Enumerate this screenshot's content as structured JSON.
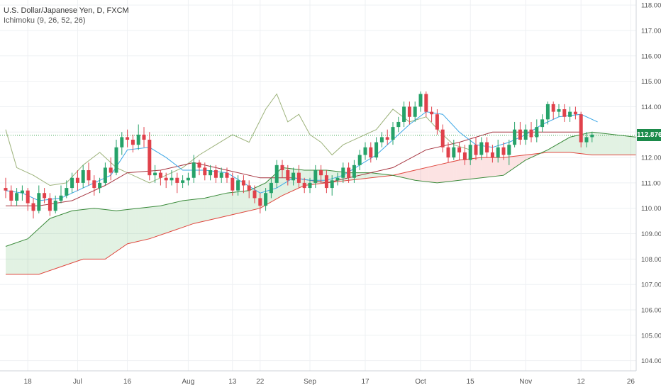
{
  "legend": {
    "title": "U.S. Dollar/Japanese Yen, D, FXCM",
    "indicator": "Ichimoku (9, 26, 52, 26)"
  },
  "last_price_label": "112.876",
  "colors": {
    "up": "#26a269",
    "down": "#e0414b",
    "tenkan": "#3aa6e6",
    "kijun": "#a6343f",
    "chikou": "#9cb27a",
    "span_a": "#3a8a3a",
    "span_b": "#e0453c",
    "cloud_bull": "rgba(76,175,80,0.16)",
    "cloud_bear": "rgba(239,83,80,0.16)",
    "grid": "#eef0f3",
    "axis_text": "#555555",
    "price_line": "#3aa651"
  },
  "chart_data": {
    "type": "candlestick",
    "ylim": [
      103.6,
      118.2
    ],
    "y_ticks": [
      "104.000",
      "105.000",
      "106.000",
      "107.000",
      "108.000",
      "109.000",
      "110.000",
      "111.000",
      "112.000",
      "113.000",
      "114.000",
      "115.000",
      "116.000",
      "117.000",
      "118.000"
    ],
    "x_ticks": [
      {
        "i": 4,
        "label": "18"
      },
      {
        "i": 13,
        "label": "Jul"
      },
      {
        "i": 22,
        "label": "16"
      },
      {
        "i": 33,
        "label": "Aug"
      },
      {
        "i": 41,
        "label": "13"
      },
      {
        "i": 46,
        "label": "22"
      },
      {
        "i": 55,
        "label": "Sep"
      },
      {
        "i": 65,
        "label": "17"
      },
      {
        "i": 75,
        "label": "Oct"
      },
      {
        "i": 84,
        "label": "15"
      },
      {
        "i": 94,
        "label": "Nov"
      },
      {
        "i": 104,
        "label": "12"
      },
      {
        "i": 113,
        "label": "26"
      }
    ],
    "candles": [
      [
        110.8,
        110.7,
        111.2,
        110.4
      ],
      [
        110.7,
        110.3,
        110.9,
        110.1
      ],
      [
        110.3,
        110.6,
        110.8,
        110.1
      ],
      [
        110.6,
        110.7,
        110.9,
        110.3
      ],
      [
        110.7,
        110.2,
        110.8,
        109.9
      ],
      [
        110.2,
        109.9,
        110.4,
        109.6
      ],
      [
        109.9,
        110.6,
        110.9,
        109.8
      ],
      [
        110.6,
        110.4,
        110.8,
        110.2
      ],
      [
        110.4,
        109.9,
        110.6,
        109.7
      ],
      [
        109.9,
        110.3,
        110.5,
        109.8
      ],
      [
        110.3,
        110.5,
        110.9,
        110.2
      ],
      [
        110.5,
        110.8,
        111.1,
        110.4
      ],
      [
        110.8,
        111.2,
        111.4,
        110.6
      ],
      [
        111.2,
        111.0,
        111.5,
        110.7
      ],
      [
        111.0,
        111.5,
        111.7,
        110.8
      ],
      [
        111.5,
        111.1,
        111.8,
        110.9
      ],
      [
        111.1,
        110.8,
        111.3,
        110.5
      ],
      [
        110.8,
        111.0,
        111.2,
        110.6
      ],
      [
        111.0,
        111.6,
        111.8,
        110.9
      ],
      [
        111.6,
        111.4,
        112.0,
        111.1
      ],
      [
        111.4,
        112.4,
        112.7,
        111.3
      ],
      [
        112.4,
        112.8,
        113.0,
        112.1
      ],
      [
        112.8,
        112.7,
        113.1,
        112.4
      ],
      [
        112.7,
        112.5,
        112.9,
        112.2
      ],
      [
        112.5,
        112.9,
        113.3,
        112.3
      ],
      [
        112.9,
        112.7,
        113.2,
        112.4
      ],
      [
        112.7,
        111.3,
        113.0,
        111.1
      ],
      [
        111.3,
        111.4,
        111.7,
        111.0
      ],
      [
        111.4,
        111.2,
        111.5,
        110.9
      ],
      [
        111.2,
        111.1,
        111.4,
        110.8
      ],
      [
        111.1,
        111.2,
        111.5,
        110.9
      ],
      [
        111.2,
        111.0,
        111.4,
        110.6
      ],
      [
        111.0,
        111.1,
        111.3,
        110.8
      ],
      [
        111.1,
        111.2,
        111.4,
        110.9
      ],
      [
        111.2,
        111.8,
        112.1,
        111.0
      ],
      [
        111.8,
        111.6,
        111.9,
        111.3
      ],
      [
        111.6,
        111.3,
        111.8,
        111.1
      ],
      [
        111.3,
        111.5,
        111.7,
        111.1
      ],
      [
        111.5,
        111.2,
        111.7,
        111.0
      ],
      [
        111.2,
        111.4,
        111.6,
        111.0
      ],
      [
        111.4,
        111.2,
        111.6,
        111.0
      ],
      [
        111.2,
        110.7,
        111.4,
        110.5
      ],
      [
        110.7,
        111.1,
        111.3,
        110.5
      ],
      [
        111.1,
        110.9,
        111.3,
        110.6
      ],
      [
        110.9,
        110.7,
        111.1,
        110.4
      ],
      [
        110.7,
        110.4,
        110.9,
        110.2
      ],
      [
        110.4,
        110.1,
        110.6,
        109.8
      ],
      [
        110.1,
        110.6,
        110.8,
        109.9
      ],
      [
        110.6,
        111.0,
        111.2,
        110.4
      ],
      [
        111.0,
        111.7,
        111.9,
        110.8
      ],
      [
        111.7,
        111.5,
        111.9,
        111.2
      ],
      [
        111.5,
        111.1,
        111.7,
        110.9
      ],
      [
        111.1,
        111.4,
        111.6,
        110.9
      ],
      [
        111.4,
        111.0,
        111.7,
        110.8
      ],
      [
        111.0,
        110.8,
        111.2,
        110.6
      ],
      [
        110.8,
        111.0,
        111.2,
        110.6
      ],
      [
        111.0,
        111.5,
        111.7,
        110.8
      ],
      [
        111.5,
        111.3,
        111.7,
        111.0
      ],
      [
        111.3,
        110.8,
        111.5,
        110.6
      ],
      [
        110.8,
        111.1,
        111.3,
        110.5
      ],
      [
        111.1,
        111.2,
        111.4,
        110.9
      ],
      [
        111.2,
        111.6,
        111.8,
        111.0
      ],
      [
        111.6,
        111.2,
        111.8,
        111.0
      ],
      [
        111.2,
        111.7,
        111.9,
        111.0
      ],
      [
        111.7,
        112.1,
        112.3,
        111.5
      ],
      [
        112.1,
        112.4,
        112.6,
        111.9
      ],
      [
        112.4,
        112.0,
        112.6,
        111.8
      ],
      [
        112.0,
        112.6,
        112.8,
        111.9
      ],
      [
        112.6,
        112.8,
        113.0,
        112.4
      ],
      [
        112.8,
        112.7,
        113.1,
        112.5
      ],
      [
        112.7,
        113.2,
        113.4,
        112.5
      ],
      [
        113.2,
        113.4,
        113.6,
        113.0
      ],
      [
        113.4,
        114.0,
        114.2,
        113.2
      ],
      [
        114.0,
        113.6,
        114.2,
        113.3
      ],
      [
        113.6,
        114.0,
        114.2,
        113.4
      ],
      [
        114.0,
        114.5,
        114.6,
        113.8
      ],
      [
        114.5,
        113.8,
        114.6,
        113.6
      ],
      [
        113.8,
        113.7,
        114.0,
        113.4
      ],
      [
        113.7,
        113.1,
        113.9,
        112.9
      ],
      [
        113.1,
        112.4,
        113.3,
        112.2
      ],
      [
        112.4,
        112.0,
        112.6,
        111.8
      ],
      [
        112.0,
        112.4,
        112.7,
        111.9
      ],
      [
        112.4,
        112.2,
        112.6,
        111.9
      ],
      [
        112.2,
        111.9,
        112.5,
        111.7
      ],
      [
        111.9,
        112.5,
        112.7,
        111.7
      ],
      [
        112.5,
        112.1,
        112.8,
        111.9
      ],
      [
        112.1,
        112.6,
        112.8,
        111.9
      ],
      [
        112.6,
        112.2,
        112.8,
        112.0
      ],
      [
        112.2,
        112.0,
        112.5,
        111.8
      ],
      [
        112.0,
        112.4,
        112.7,
        111.8
      ],
      [
        112.4,
        112.1,
        112.6,
        111.9
      ],
      [
        112.1,
        112.5,
        112.7,
        111.7
      ],
      [
        112.5,
        113.1,
        113.4,
        112.4
      ],
      [
        113.1,
        112.7,
        113.4,
        112.5
      ],
      [
        112.7,
        113.1,
        113.3,
        112.5
      ],
      [
        113.1,
        112.8,
        113.4,
        112.6
      ],
      [
        112.8,
        113.2,
        113.5,
        112.6
      ],
      [
        113.2,
        113.5,
        113.7,
        113.0
      ],
      [
        113.5,
        114.1,
        114.2,
        113.3
      ],
      [
        114.1,
        113.8,
        114.2,
        113.5
      ],
      [
        113.8,
        113.9,
        114.1,
        113.6
      ],
      [
        113.9,
        113.6,
        114.1,
        113.4
      ],
      [
        113.6,
        113.8,
        114.0,
        113.4
      ],
      [
        113.8,
        113.7,
        114.0,
        113.5
      ],
      [
        113.7,
        112.6,
        113.8,
        112.4
      ],
      [
        112.6,
        112.8,
        113.0,
        112.4
      ],
      [
        112.8,
        112.9,
        113.0,
        112.6
      ]
    ],
    "tenkan": [
      [
        0,
        110.7
      ],
      [
        3,
        110.6
      ],
      [
        6,
        110.3
      ],
      [
        10,
        110.4
      ],
      [
        13,
        110.7
      ],
      [
        16,
        111.0
      ],
      [
        19,
        111.3
      ],
      [
        22,
        112.3
      ],
      [
        26,
        112.4
      ],
      [
        29,
        112.0
      ],
      [
        32,
        111.5
      ],
      [
        36,
        111.5
      ],
      [
        40,
        111.4
      ],
      [
        43,
        111.0
      ],
      [
        46,
        110.6
      ],
      [
        49,
        110.8
      ],
      [
        52,
        111.2
      ],
      [
        55,
        111.1
      ],
      [
        58,
        111.1
      ],
      [
        61,
        111.3
      ],
      [
        64,
        111.7
      ],
      [
        67,
        112.1
      ],
      [
        70,
        112.7
      ],
      [
        73,
        113.3
      ],
      [
        76,
        113.8
      ],
      [
        79,
        113.7
      ],
      [
        82,
        113.0
      ],
      [
        85,
        112.5
      ],
      [
        88,
        112.4
      ],
      [
        91,
        112.6
      ],
      [
        94,
        112.9
      ],
      [
        97,
        113.3
      ],
      [
        100,
        113.6
      ],
      [
        104,
        113.7
      ],
      [
        107,
        113.4
      ]
    ],
    "kijun": [
      [
        0,
        110.1
      ],
      [
        6,
        110.1
      ],
      [
        12,
        110.3
      ],
      [
        18,
        110.9
      ],
      [
        22,
        111.4
      ],
      [
        28,
        111.5
      ],
      [
        34,
        111.8
      ],
      [
        40,
        111.5
      ],
      [
        46,
        111.2
      ],
      [
        52,
        111.2
      ],
      [
        58,
        111.0
      ],
      [
        64,
        111.3
      ],
      [
        70,
        111.6
      ],
      [
        76,
        112.3
      ],
      [
        82,
        112.6
      ],
      [
        88,
        113.0
      ],
      [
        94,
        113.0
      ],
      [
        100,
        113.0
      ],
      [
        104,
        113.0
      ]
    ],
    "chikou": [
      [
        0,
        113.1
      ],
      [
        2,
        111.6
      ],
      [
        5,
        111.3
      ],
      [
        8,
        110.9
      ],
      [
        11,
        111.0
      ],
      [
        14,
        111.7
      ],
      [
        17,
        112.2
      ],
      [
        20,
        111.6
      ],
      [
        23,
        111.3
      ],
      [
        26,
        111.0
      ],
      [
        29,
        111.3
      ],
      [
        32,
        111.6
      ],
      [
        35,
        112.1
      ],
      [
        38,
        112.5
      ],
      [
        41,
        112.9
      ],
      [
        44,
        112.6
      ],
      [
        47,
        113.9
      ],
      [
        49,
        114.5
      ],
      [
        51,
        113.4
      ],
      [
        53,
        113.7
      ],
      [
        55,
        112.9
      ],
      [
        57,
        112.6
      ],
      [
        59,
        112.1
      ],
      [
        61,
        112.5
      ],
      [
        64,
        112.8
      ],
      [
        67,
        113.1
      ],
      [
        70,
        113.9
      ],
      [
        73,
        113.4
      ],
      [
        76,
        113.6
      ],
      [
        79,
        112.9
      ],
      [
        81,
        112.5
      ],
      [
        84,
        112.3
      ]
    ],
    "span_a": [
      [
        0,
        108.5
      ],
      [
        4,
        108.8
      ],
      [
        8,
        109.6
      ],
      [
        12,
        109.9
      ],
      [
        16,
        110.0
      ],
      [
        20,
        109.9
      ],
      [
        24,
        110.0
      ],
      [
        28,
        110.1
      ],
      [
        32,
        110.3
      ],
      [
        36,
        110.4
      ],
      [
        40,
        110.6
      ],
      [
        44,
        110.7
      ],
      [
        47,
        111.0
      ],
      [
        50,
        111.6
      ],
      [
        54,
        111.5
      ],
      [
        58,
        111.5
      ],
      [
        62,
        111.4
      ],
      [
        66,
        111.4
      ],
      [
        70,
        111.3
      ],
      [
        74,
        111.1
      ],
      [
        78,
        111.0
      ],
      [
        82,
        111.1
      ],
      [
        86,
        111.2
      ],
      [
        90,
        111.3
      ],
      [
        94,
        111.9
      ],
      [
        98,
        112.3
      ],
      [
        102,
        112.8
      ],
      [
        106,
        113.0
      ],
      [
        110,
        112.9
      ],
      [
        114,
        112.8
      ]
    ],
    "span_b": [
      [
        0,
        107.4
      ],
      [
        6,
        107.4
      ],
      [
        10,
        107.7
      ],
      [
        14,
        108.0
      ],
      [
        18,
        108.0
      ],
      [
        22,
        108.6
      ],
      [
        26,
        108.8
      ],
      [
        30,
        109.1
      ],
      [
        34,
        109.4
      ],
      [
        38,
        109.6
      ],
      [
        42,
        109.8
      ],
      [
        46,
        110.0
      ],
      [
        50,
        110.5
      ],
      [
        54,
        110.9
      ],
      [
        58,
        111.0
      ],
      [
        62,
        111.1
      ],
      [
        66,
        111.2
      ],
      [
        70,
        111.3
      ],
      [
        74,
        111.5
      ],
      [
        78,
        111.7
      ],
      [
        82,
        111.9
      ],
      [
        86,
        112.0
      ],
      [
        90,
        112.0
      ],
      [
        94,
        112.1
      ],
      [
        98,
        112.2
      ],
      [
        102,
        112.2
      ],
      [
        106,
        112.1
      ],
      [
        110,
        112.1
      ],
      [
        114,
        112.1
      ]
    ],
    "last_price": 112.876
  }
}
